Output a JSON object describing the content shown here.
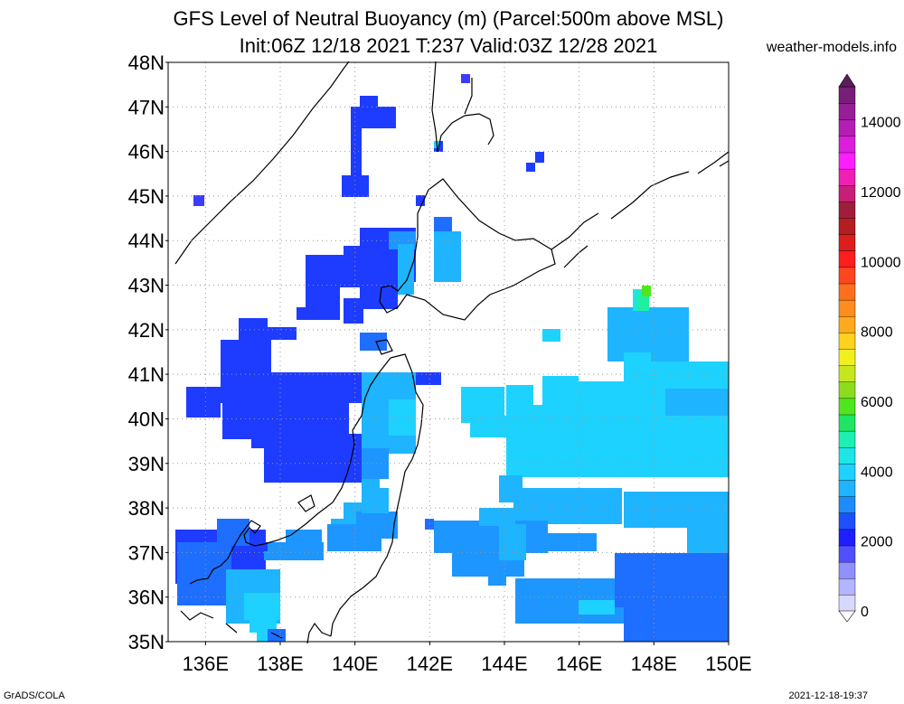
{
  "header": {
    "title": "GFS Level of Neutral Buoyancy (m) (Parcel:500m above MSL)",
    "subtitle": "Init:06Z 12/18 2021 T:237 Valid:03Z 12/28 2021",
    "site": "weather-models.info"
  },
  "map": {
    "lat_labels": [
      "48N",
      "47N",
      "46N",
      "45N",
      "44N",
      "43N",
      "42N",
      "41N",
      "40N",
      "39N",
      "38N",
      "37N",
      "36N",
      "35N"
    ],
    "lon_labels": [
      "136E",
      "138E",
      "140E",
      "142E",
      "144E",
      "146E",
      "148E",
      "150E"
    ],
    "lat_range": [
      35,
      48
    ],
    "lon_range": [
      135,
      150
    ],
    "grid": "dotted",
    "background": "#ffffff"
  },
  "colorbar": {
    "labels": [
      "14000",
      "12000",
      "10000",
      "8000",
      "6000",
      "4000",
      "2000",
      "0"
    ],
    "colors": [
      "#d8d8ff",
      "#b4b4ff",
      "#9090ff",
      "#5050ff",
      "#1e1eff",
      "#1e50ff",
      "#1e8cff",
      "#1eb4ff",
      "#1ed2ff",
      "#1ee6e6",
      "#1ef0b4",
      "#1ee664",
      "#50e61e",
      "#8cdc1e",
      "#c8e61e",
      "#f0f01e",
      "#ffd21e",
      "#ffaa1e",
      "#ff8c1e",
      "#ff6e1e",
      "#ff461e",
      "#ff1e1e",
      "#dc1e1e",
      "#b41e1e",
      "#a01e3c",
      "#c81e78",
      "#f01eb4",
      "#ff1eff",
      "#dc1edc",
      "#b41eb4",
      "#961e96",
      "#781e78"
    ]
  },
  "footer": {
    "left": "GrADS/COLA",
    "right": "2021-12-18-19:37"
  }
}
